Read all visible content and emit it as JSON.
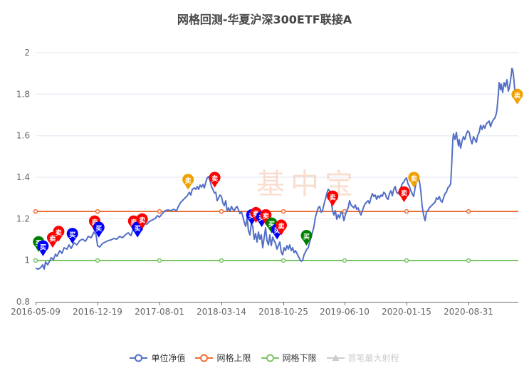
{
  "title": "网格回测-华夏沪深300ETF联接A",
  "watermark": "基中宝",
  "legend": [
    {
      "label": "单位净值",
      "color": "#5470c6",
      "enabled": true
    },
    {
      "label": "网格上限",
      "color": "#ee6f36",
      "enabled": true
    },
    {
      "label": "网格下限",
      "color": "#7cc468",
      "enabled": true
    },
    {
      "label": "首笔最大射程",
      "color": "#cccccc",
      "enabled": false
    }
  ],
  "chart_data": {
    "type": "line",
    "title": "网格回测-华夏沪深300ETF联接A",
    "xlabel": "",
    "ylabel": "",
    "ylim": [
      0.8,
      2.0
    ],
    "yticks": [
      "0.8",
      "1",
      "1.2",
      "1.4",
      "1.6",
      "1.8",
      "2"
    ],
    "xticks": [
      "2016-05-09",
      "2016-12-19",
      "2017-08-01",
      "2018-03-14",
      "2018-10-25",
      "2019-06-10",
      "2020-01-15",
      "2020-08-31"
    ],
    "grid": true,
    "legend_position": "bottom",
    "series": [
      {
        "name": "单位净值",
        "x": [
          "2016-05-09",
          "2016-07-01",
          "2016-09-01",
          "2016-12-19",
          "2017-03-01",
          "2017-05-01",
          "2017-08-01",
          "2017-10-01",
          "2017-11-20",
          "2018-01-24",
          "2018-02-10",
          "2018-03-14",
          "2018-05-01",
          "2018-06-20",
          "2018-08-01",
          "2018-09-15",
          "2018-10-25",
          "2018-12-20",
          "2019-01-03",
          "2019-02-25",
          "2019-04-15",
          "2019-05-10",
          "2019-06-10",
          "2019-08-10",
          "2019-10-10",
          "2019-12-10",
          "2020-01-15",
          "2020-02-03",
          "2020-03-23",
          "2020-05-25",
          "2020-07-06",
          "2020-07-20",
          "2020-08-31",
          "2020-10-15",
          "2020-12-10",
          "2021-01-15",
          "2021-02-10",
          "2021-02-25"
        ],
        "values": [
          0.96,
          1.04,
          1.08,
          1.07,
          1.1,
          1.12,
          1.2,
          1.27,
          1.33,
          1.3,
          1.4,
          1.24,
          1.22,
          1.14,
          1.15,
          1.12,
          1.06,
          1.03,
          1.0,
          1.16,
          1.34,
          1.22,
          1.2,
          1.27,
          1.3,
          1.34,
          1.38,
          1.29,
          1.2,
          1.29,
          1.33,
          1.57,
          1.6,
          1.64,
          1.72,
          1.87,
          1.93,
          1.78
        ]
      },
      {
        "name": "网格上限",
        "value": 1.235
      },
      {
        "name": "网格下限",
        "value": 1.0
      }
    ],
    "annotations": [
      {
        "label": "买",
        "color": "#008000",
        "x": "2016-05-20",
        "y": 1.04
      },
      {
        "label": "买",
        "color": "#0000ff",
        "x": "2016-06-05",
        "y": 1.02
      },
      {
        "label": "卖",
        "color": "#ff0000",
        "x": "2016-07-10",
        "y": 1.06
      },
      {
        "label": "卖",
        "color": "#ff0000",
        "x": "2016-08-01",
        "y": 1.09
      },
      {
        "label": "买",
        "color": "#0000ff",
        "x": "2016-09-20",
        "y": 1.08
      },
      {
        "label": "卖",
        "color": "#ff0000",
        "x": "2016-12-10",
        "y": 1.14
      },
      {
        "label": "买",
        "color": "#0000ff",
        "x": "2016-12-25",
        "y": 1.11
      },
      {
        "label": "卖",
        "color": "#ff0000",
        "x": "2017-05-01",
        "y": 1.14
      },
      {
        "label": "买",
        "color": "#0000ff",
        "x": "2017-05-15",
        "y": 1.11
      },
      {
        "label": "卖",
        "color": "#ff0000",
        "x": "2017-06-01",
        "y": 1.15
      },
      {
        "label": "卖",
        "color": "#f0a000",
        "x": "2017-11-15",
        "y": 1.34
      },
      {
        "label": "卖",
        "color": "#ff0000",
        "x": "2018-02-20",
        "y": 1.35
      },
      {
        "label": "买",
        "color": "#0000ff",
        "x": "2018-07-05",
        "y": 1.17
      },
      {
        "label": "卖",
        "color": "#ff0000",
        "x": "2018-07-20",
        "y": 1.18
      },
      {
        "label": "买",
        "color": "#0000ff",
        "x": "2018-08-10",
        "y": 1.16
      },
      {
        "label": "卖",
        "color": "#ff0000",
        "x": "2018-08-25",
        "y": 1.17
      },
      {
        "label": "买",
        "color": "#008000",
        "x": "2018-09-15",
        "y": 1.13
      },
      {
        "label": "买",
        "color": "#0000ff",
        "x": "2018-10-05",
        "y": 1.1
      },
      {
        "label": "卖",
        "color": "#ff0000",
        "x": "2018-10-20",
        "y": 1.12
      },
      {
        "label": "买",
        "color": "#008000",
        "x": "2019-01-20",
        "y": 1.07
      },
      {
        "label": "卖",
        "color": "#ff0000",
        "x": "2019-04-25",
        "y": 1.26
      },
      {
        "label": "卖",
        "color": "#ff0000",
        "x": "2020-01-10",
        "y": 1.28
      },
      {
        "label": "卖",
        "color": "#f0a000",
        "x": "2020-02-15",
        "y": 1.35
      },
      {
        "label": "卖",
        "color": "#f0a000",
        "x": "2021-02-25",
        "y": 1.75
      }
    ]
  }
}
